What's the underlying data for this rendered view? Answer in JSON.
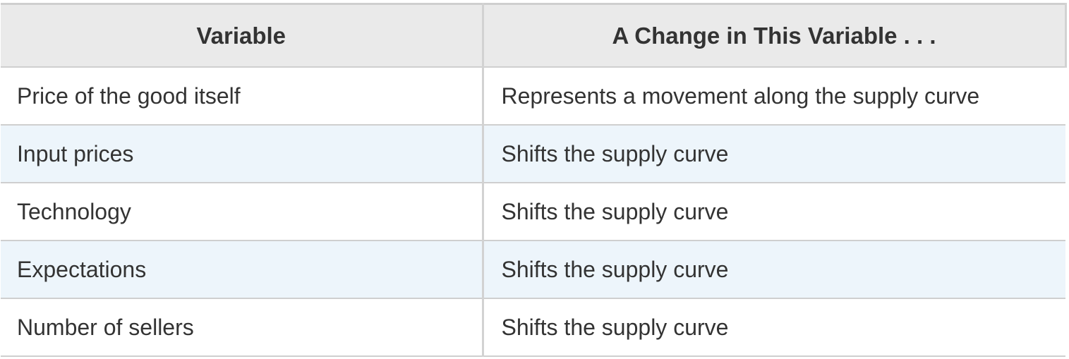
{
  "table": {
    "headers": [
      "Variable",
      "A Change in This Variable . . ."
    ],
    "rows": [
      [
        "Price of the good itself",
        "Represents a movement along the supply curve"
      ],
      [
        "Input prices",
        "Shifts the supply curve"
      ],
      [
        "Technology",
        "Shifts the supply curve"
      ],
      [
        "Expectations",
        "Shifts the supply curve"
      ],
      [
        "Number of sellers",
        "Shifts the supply curve"
      ]
    ]
  },
  "colors": {
    "header_background": "#eaeaea",
    "stripe_background": "#edf5fb",
    "border": "#cfcfcf",
    "text": "#333333"
  }
}
